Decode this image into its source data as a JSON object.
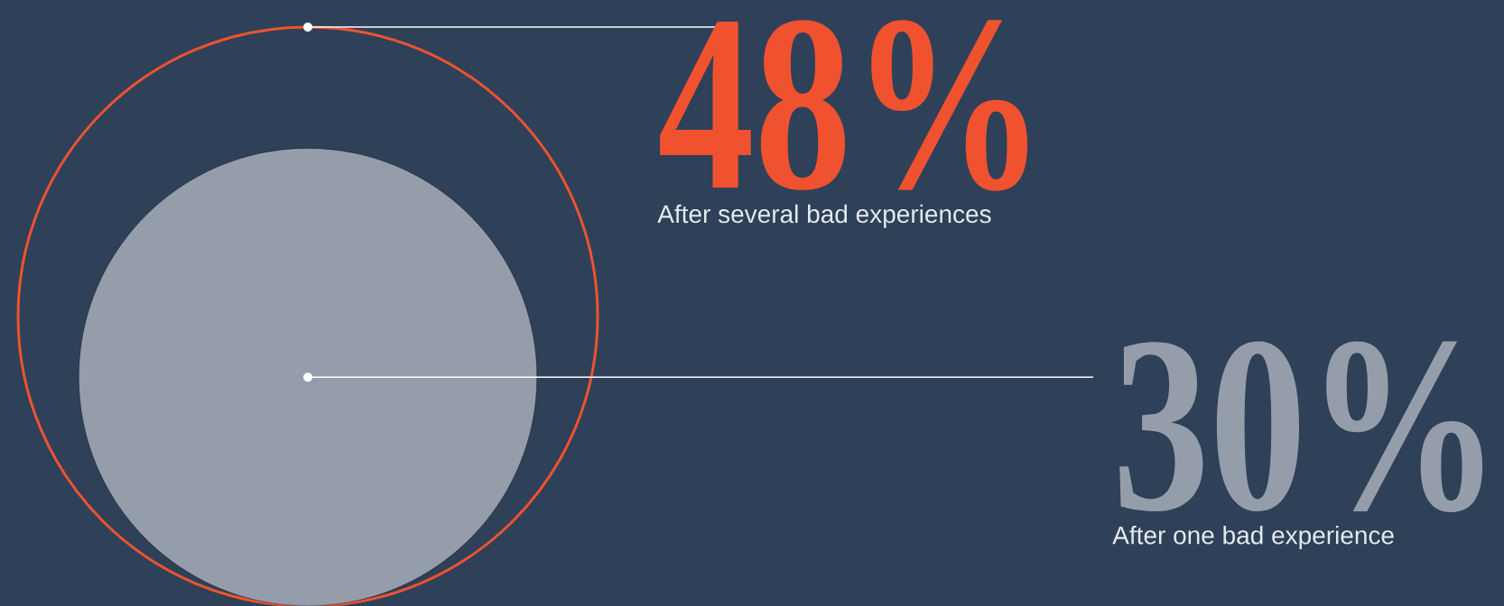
{
  "chart_data": {
    "type": "other",
    "categories": [
      "After several bad experiences",
      "After one bad experience"
    ],
    "values": [
      48,
      30
    ],
    "value_labels": [
      "48%",
      "30%"
    ],
    "colors": [
      "#f0522f",
      "#959dab"
    ]
  }
}
